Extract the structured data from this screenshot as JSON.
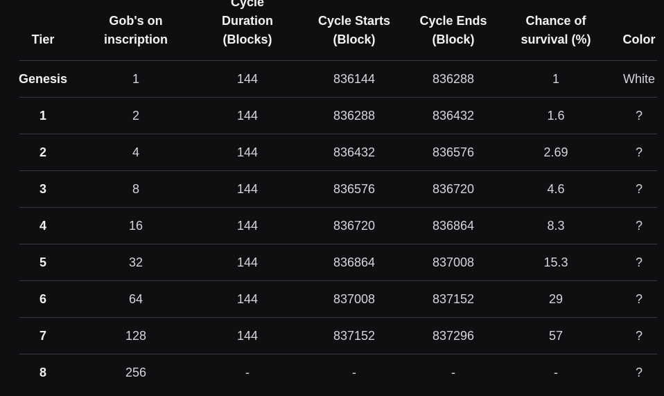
{
  "table": {
    "columns": [
      {
        "key": "tier",
        "label": "Tier"
      },
      {
        "key": "gobs",
        "label": "Gob's on\ninscription"
      },
      {
        "key": "duration",
        "label": "Cycle\nDuration\n(Blocks)"
      },
      {
        "key": "starts",
        "label": "Cycle Starts\n(Block)"
      },
      {
        "key": "ends",
        "label": "Cycle Ends\n(Block)"
      },
      {
        "key": "survival",
        "label": "Chance of\nsurvival (%)"
      },
      {
        "key": "color",
        "label": "Color"
      }
    ],
    "rows": [
      {
        "tier": "Genesis",
        "gobs": "1",
        "duration": "144",
        "starts": "836144",
        "ends": "836288",
        "survival": "1",
        "color": "White"
      },
      {
        "tier": "1",
        "gobs": "2",
        "duration": "144",
        "starts": "836288",
        "ends": "836432",
        "survival": "1.6",
        "color": "?"
      },
      {
        "tier": "2",
        "gobs": "4",
        "duration": "144",
        "starts": "836432",
        "ends": "836576",
        "survival": "2.69",
        "color": "?"
      },
      {
        "tier": "3",
        "gobs": "8",
        "duration": "144",
        "starts": "836576",
        "ends": "836720",
        "survival": "4.6",
        "color": "?"
      },
      {
        "tier": "4",
        "gobs": "16",
        "duration": "144",
        "starts": "836720",
        "ends": "836864",
        "survival": "8.3",
        "color": "?"
      },
      {
        "tier": "5",
        "gobs": "32",
        "duration": "144",
        "starts": "836864",
        "ends": "837008",
        "survival": "15.3",
        "color": "?"
      },
      {
        "tier": "6",
        "gobs": "64",
        "duration": "144",
        "starts": "837008",
        "ends": "837152",
        "survival": "29",
        "color": "?"
      },
      {
        "tier": "7",
        "gobs": "128",
        "duration": "144",
        "starts": "837152",
        "ends": "837296",
        "survival": "57",
        "color": "?"
      },
      {
        "tier": "8",
        "gobs": "256",
        "duration": "-",
        "starts": "-",
        "ends": "-",
        "survival": "-",
        "color": "?"
      }
    ]
  }
}
